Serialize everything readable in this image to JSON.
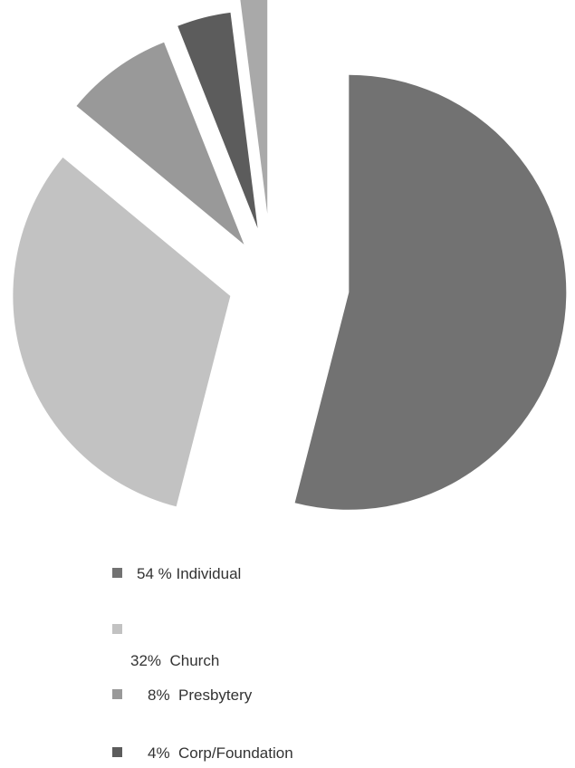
{
  "chart_data": {
    "type": "pie",
    "title": "",
    "slices": [
      {
        "label": "54 % Individual",
        "value": 54,
        "color": "#727272"
      },
      {
        "label": "32%  Church",
        "value": 32,
        "color": "#c2c2c2"
      },
      {
        "label": "8%  Presbytery",
        "value": 8,
        "color": "#999999"
      },
      {
        "label": "4%  Corp/Foundation",
        "value": 4,
        "color": "#5c5c5c"
      },
      {
        "label": "",
        "value": 2,
        "color": "#a9a9a9"
      }
    ],
    "legend_position": "bottom",
    "exploded": true
  },
  "legend": {
    "items": [
      {
        "text": "54 % Individual",
        "color": "#727272"
      },
      {
        "text": "32%  Church",
        "color": "#c2c2c2"
      },
      {
        "text": "8%  Presbytery",
        "color": "#999999"
      },
      {
        "text": "4%  Corp/Foundation",
        "color": "#5c5c5c"
      }
    ]
  }
}
